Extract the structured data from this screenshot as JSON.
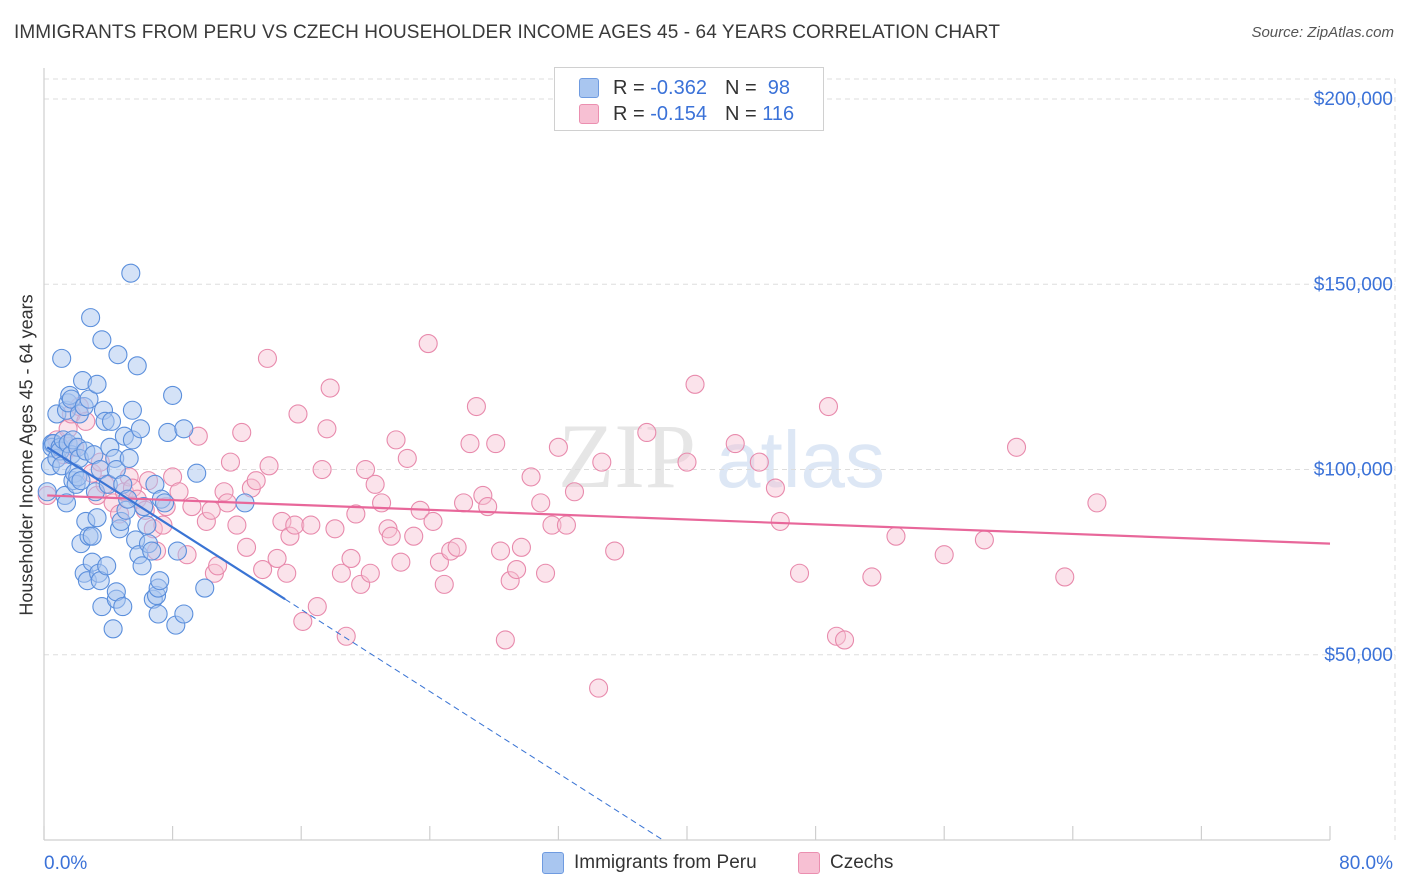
{
  "title": "IMMIGRANTS FROM PERU VS CZECH HOUSEHOLDER INCOME AGES 45 - 64 YEARS CORRELATION CHART",
  "source": "Source: ZipAtlas.com",
  "watermark": {
    "zip": "ZIP",
    "atlas": "atlas"
  },
  "legend": {
    "rows": [
      {
        "r_label": "R =",
        "r_value": "-0.362",
        "n_label": "N =",
        "n_value": "98",
        "fill": "#a9c6f0",
        "stroke": "#6f9be0"
      },
      {
        "r_label": "R =",
        "r_value": "-0.154",
        "n_label": "N =",
        "n_value": "116",
        "fill": "#f7c0d3",
        "stroke": "#eb8fb0"
      }
    ]
  },
  "bottom_legend": {
    "series1": "Immigrants from Peru",
    "series2": "Czechs"
  },
  "chart_data": {
    "type": "scatter",
    "title": "IMMIGRANTS FROM PERU VS CZECH HOUSEHOLDER INCOME AGES 45 - 64 YEARS CORRELATION CHART",
    "xlabel": "",
    "ylabel": "Householder Income Ages 45 - 64 years",
    "xlim": [
      0,
      80
    ],
    "ylim": [
      0,
      210000
    ],
    "x_tick_labels": [
      "0.0%",
      "80.0%"
    ],
    "y_ticks": [
      50000,
      100000,
      150000,
      200000
    ],
    "y_tick_labels": [
      "$50,000",
      "$100,000",
      "$150,000",
      "$200,000"
    ],
    "colors": {
      "peru_fill": "#a9c6f0",
      "peru_stroke": "#5b8fdc",
      "peru_line": "#3a74d4",
      "czech_fill": "#f7c0d3",
      "czech_stroke": "#e88aac",
      "czech_line": "#e8679a",
      "axis_label": "#3b72d8",
      "grid": "#dddddd"
    },
    "series": [
      {
        "name": "Immigrants from Peru",
        "r": -0.362,
        "n": 98,
        "trend": {
          "x0": 0.2,
          "y0": 106000,
          "x1": 15.0,
          "y1": 65000,
          "dash_to_x": 38.5,
          "dash_to_y": 0
        },
        "points": [
          [
            0.2,
            94000
          ],
          [
            0.4,
            101000
          ],
          [
            0.5,
            107000
          ],
          [
            0.5,
            106000
          ],
          [
            0.6,
            107000
          ],
          [
            0.8,
            103000
          ],
          [
            0.8,
            115000
          ],
          [
            1.0,
            106000
          ],
          [
            1.0,
            105000
          ],
          [
            1.1,
            101000
          ],
          [
            1.1,
            130000
          ],
          [
            1.2,
            108000
          ],
          [
            1.3,
            93000
          ],
          [
            1.4,
            91000
          ],
          [
            1.4,
            116000
          ],
          [
            1.5,
            118000
          ],
          [
            1.5,
            107000
          ],
          [
            1.6,
            120000
          ],
          [
            1.7,
            119000
          ],
          [
            1.7,
            104000
          ],
          [
            1.8,
            97000
          ],
          [
            1.8,
            108000
          ],
          [
            1.9,
            99000
          ],
          [
            2.0,
            96000
          ],
          [
            2.1,
            98000
          ],
          [
            2.1,
            106000
          ],
          [
            2.2,
            103000
          ],
          [
            2.2,
            115000
          ],
          [
            2.3,
            97000
          ],
          [
            2.3,
            80000
          ],
          [
            2.4,
            124000
          ],
          [
            2.5,
            117000
          ],
          [
            2.5,
            72000
          ],
          [
            2.6,
            105000
          ],
          [
            2.6,
            86000
          ],
          [
            2.7,
            70000
          ],
          [
            2.8,
            119000
          ],
          [
            2.8,
            82000
          ],
          [
            2.9,
            141000
          ],
          [
            3.0,
            82000
          ],
          [
            3.0,
            75000
          ],
          [
            3.1,
            104000
          ],
          [
            3.2,
            94000
          ],
          [
            3.3,
            123000
          ],
          [
            3.3,
            87000
          ],
          [
            3.4,
            72000
          ],
          [
            3.5,
            70000
          ],
          [
            3.5,
            100000
          ],
          [
            3.6,
            63000
          ],
          [
            3.6,
            135000
          ],
          [
            3.7,
            116000
          ],
          [
            3.8,
            113000
          ],
          [
            3.9,
            74000
          ],
          [
            4.0,
            96000
          ],
          [
            4.1,
            106000
          ],
          [
            4.2,
            113000
          ],
          [
            4.3,
            57000
          ],
          [
            4.4,
            103000
          ],
          [
            4.5,
            65000
          ],
          [
            4.5,
            100000
          ],
          [
            4.5,
            67000
          ],
          [
            4.6,
            131000
          ],
          [
            4.7,
            84000
          ],
          [
            4.8,
            86000
          ],
          [
            4.9,
            63000
          ],
          [
            4.9,
            96000
          ],
          [
            5.0,
            109000
          ],
          [
            5.1,
            89000
          ],
          [
            5.2,
            92000
          ],
          [
            5.3,
            103000
          ],
          [
            5.5,
            108000
          ],
          [
            5.5,
            116000
          ],
          [
            5.7,
            81000
          ],
          [
            5.8,
            128000
          ],
          [
            5.9,
            77000
          ],
          [
            6.0,
            111000
          ],
          [
            6.1,
            74000
          ],
          [
            6.2,
            90000
          ],
          [
            6.4,
            85000
          ],
          [
            6.5,
            80000
          ],
          [
            6.7,
            78000
          ],
          [
            6.8,
            65000
          ],
          [
            6.9,
            96000
          ],
          [
            7.0,
            66000
          ],
          [
            7.1,
            68000
          ],
          [
            7.1,
            61000
          ],
          [
            7.2,
            70000
          ],
          [
            7.3,
            92000
          ],
          [
            7.5,
            91000
          ],
          [
            7.7,
            110000
          ],
          [
            8.0,
            120000
          ],
          [
            8.2,
            58000
          ],
          [
            8.3,
            78000
          ],
          [
            8.7,
            111000
          ],
          [
            8.7,
            61000
          ],
          [
            9.5,
            99000
          ],
          [
            10.0,
            68000
          ],
          [
            12.5,
            91000
          ],
          [
            5.4,
            153000
          ]
        ]
      },
      {
        "name": "Czechs",
        "r": -0.154,
        "n": 116,
        "trend": {
          "x0": 0.2,
          "y0": 93000,
          "x1": 80.0,
          "y1": 80000
        },
        "points": [
          [
            0.2,
            93000
          ],
          [
            0.8,
            108000
          ],
          [
            1.2,
            104000
          ],
          [
            1.5,
            111000
          ],
          [
            1.7,
            115000
          ],
          [
            1.9,
            106000
          ],
          [
            2.2,
            117000
          ],
          [
            2.6,
            113000
          ],
          [
            3.0,
            99000
          ],
          [
            3.3,
            93000
          ],
          [
            3.5,
            102000
          ],
          [
            3.8,
            96000
          ],
          [
            4.3,
            91000
          ],
          [
            4.7,
            88000
          ],
          [
            5.0,
            94000
          ],
          [
            5.3,
            98000
          ],
          [
            5.5,
            95000
          ],
          [
            5.8,
            92000
          ],
          [
            6.3,
            89000
          ],
          [
            6.5,
            97000
          ],
          [
            6.8,
            84000
          ],
          [
            7.0,
            78000
          ],
          [
            7.4,
            85000
          ],
          [
            7.6,
            90000
          ],
          [
            8.0,
            98000
          ],
          [
            8.4,
            94000
          ],
          [
            8.9,
            77000
          ],
          [
            9.2,
            90000
          ],
          [
            9.6,
            109000
          ],
          [
            10.1,
            86000
          ],
          [
            10.4,
            89000
          ],
          [
            10.6,
            72000
          ],
          [
            10.8,
            74000
          ],
          [
            11.2,
            94000
          ],
          [
            11.4,
            91000
          ],
          [
            11.6,
            102000
          ],
          [
            12.0,
            85000
          ],
          [
            12.3,
            110000
          ],
          [
            12.6,
            79000
          ],
          [
            12.9,
            95000
          ],
          [
            13.2,
            97000
          ],
          [
            13.6,
            73000
          ],
          [
            13.9,
            130000
          ],
          [
            14.0,
            101000
          ],
          [
            14.5,
            76000
          ],
          [
            14.8,
            86000
          ],
          [
            15.1,
            72000
          ],
          [
            15.3,
            82000
          ],
          [
            15.6,
            85000
          ],
          [
            15.8,
            115000
          ],
          [
            16.1,
            59000
          ],
          [
            16.6,
            85000
          ],
          [
            17.0,
            63000
          ],
          [
            17.3,
            100000
          ],
          [
            17.6,
            111000
          ],
          [
            17.8,
            122000
          ],
          [
            18.1,
            84000
          ],
          [
            18.5,
            72000
          ],
          [
            18.8,
            55000
          ],
          [
            19.1,
            76000
          ],
          [
            19.4,
            88000
          ],
          [
            19.7,
            69000
          ],
          [
            20.0,
            100000
          ],
          [
            20.3,
            72000
          ],
          [
            20.6,
            96000
          ],
          [
            21.0,
            91000
          ],
          [
            21.4,
            84000
          ],
          [
            21.6,
            82000
          ],
          [
            21.9,
            108000
          ],
          [
            22.2,
            75000
          ],
          [
            22.6,
            103000
          ],
          [
            23.0,
            82000
          ],
          [
            23.4,
            89000
          ],
          [
            23.9,
            134000
          ],
          [
            24.2,
            86000
          ],
          [
            24.6,
            75000
          ],
          [
            24.9,
            69000
          ],
          [
            25.3,
            78000
          ],
          [
            25.7,
            79000
          ],
          [
            26.1,
            91000
          ],
          [
            26.5,
            107000
          ],
          [
            26.9,
            117000
          ],
          [
            27.3,
            93000
          ],
          [
            27.6,
            90000
          ],
          [
            28.1,
            107000
          ],
          [
            28.4,
            78000
          ],
          [
            28.7,
            54000
          ],
          [
            29.0,
            70000
          ],
          [
            29.4,
            73000
          ],
          [
            29.7,
            79000
          ],
          [
            30.3,
            98000
          ],
          [
            30.9,
            91000
          ],
          [
            31.2,
            72000
          ],
          [
            31.6,
            85000
          ],
          [
            32.0,
            106000
          ],
          [
            32.5,
            85000
          ],
          [
            33.0,
            94000
          ],
          [
            34.7,
            102000
          ],
          [
            35.5,
            78000
          ],
          [
            37.5,
            110000
          ],
          [
            40.0,
            102000
          ],
          [
            40.5,
            123000
          ],
          [
            43.0,
            107000
          ],
          [
            44.5,
            102000
          ],
          [
            45.5,
            95000
          ],
          [
            45.8,
            86000
          ],
          [
            47.0,
            72000
          ],
          [
            48.8,
            117000
          ],
          [
            49.3,
            55000
          ],
          [
            49.8,
            54000
          ],
          [
            51.5,
            71000
          ],
          [
            53.0,
            82000
          ],
          [
            56.0,
            77000
          ],
          [
            58.5,
            81000
          ],
          [
            60.5,
            106000
          ],
          [
            63.5,
            71000
          ],
          [
            65.5,
            91000
          ],
          [
            34.5,
            41000
          ]
        ]
      }
    ]
  }
}
